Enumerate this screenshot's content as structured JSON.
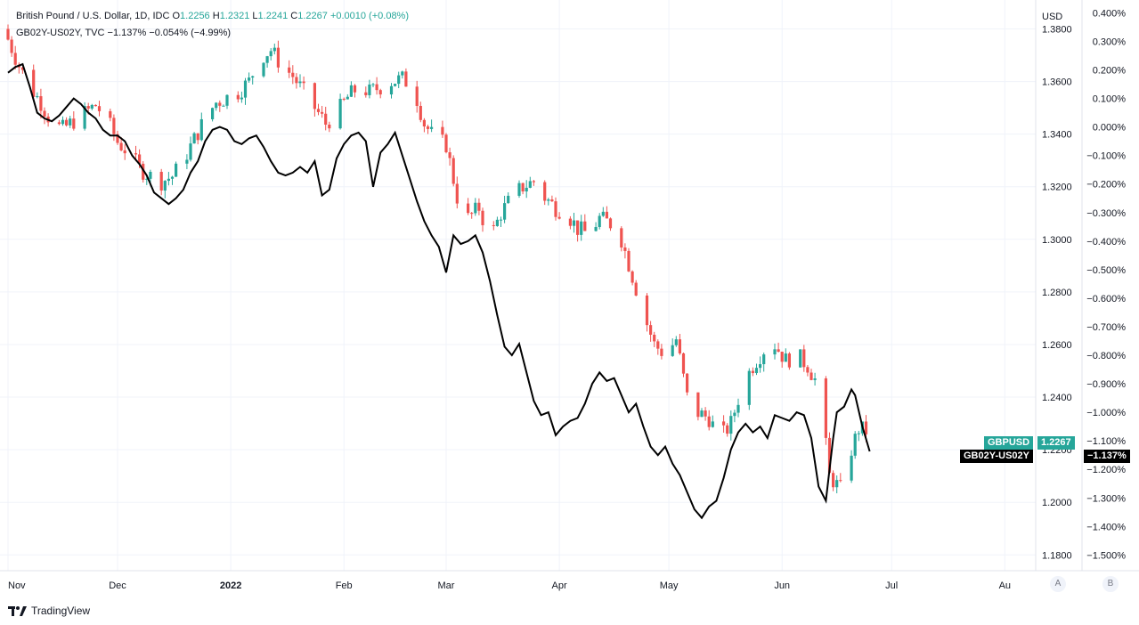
{
  "legend": {
    "line1": {
      "symbol": "British Pound / U.S. Dollar, 1D, IDC",
      "o_label": "O",
      "o": "1.2256",
      "h_label": "H",
      "h": "1.2321",
      "l_label": "L",
      "l": "1.2241",
      "c_label": "C",
      "c": "1.2267",
      "change": "+0.0010 (+0.08%)"
    },
    "line2": {
      "symbol": "GB02Y-US02Y, TVC",
      "value": "−1.137%",
      "change": "−0.054% (−4.99%)"
    }
  },
  "badges": {
    "gbpusd_name": "GBPUSD",
    "gbpusd_value": "1.2267",
    "spread_name": "GB02Y-US02Y",
    "spread_value": "−1.137%"
  },
  "footer": {
    "brand": "TradingView",
    "scale_a": "A",
    "scale_b": "B"
  },
  "colors": {
    "up": "#26a69a",
    "down": "#ef5350",
    "spread_line": "#000000",
    "grid": "#f0f3fa"
  },
  "chart_data": {
    "type": "candlestick+line",
    "left_axis": {
      "unit_label": "USD",
      "ticks": [
        "1.3800",
        "1.3600",
        "1.3400",
        "1.3200",
        "1.3000",
        "1.2800",
        "1.2600",
        "1.2400",
        "1.2200",
        "1.2000",
        "1.1800"
      ],
      "ylim": [
        1.174,
        1.391
      ]
    },
    "right_axis": {
      "ticks": [
        "0.400%",
        "0.300%",
        "0.200%",
        "0.100%",
        "0.000%",
        "−0.100%",
        "−0.200%",
        "−0.300%",
        "−0.400%",
        "−0.500%",
        "−0.600%",
        "−0.700%",
        "−0.800%",
        "−0.900%",
        "−1.000%",
        "−1.100%",
        "−1.200%",
        "−1.300%",
        "−1.400%",
        "−1.500%"
      ],
      "ylim": [
        -1.555,
        0.445
      ]
    },
    "x_ticks": [
      "Nov",
      "Dec",
      "2022",
      "Feb",
      "Mar",
      "Apr",
      "May",
      "Jun",
      "Jul",
      "Au"
    ],
    "x_tick_days": [
      0,
      30,
      61,
      92,
      120,
      151,
      181,
      212,
      242,
      273
    ],
    "series": [
      {
        "name": "GBPUSD",
        "style": "candles",
        "day_range": [
          0,
          236
        ],
        "close_anchors": [
          [
            0,
            1.376
          ],
          [
            3,
            1.366
          ],
          [
            6,
            1.358
          ],
          [
            9,
            1.352
          ],
          [
            12,
            1.344
          ],
          [
            15,
            1.342
          ],
          [
            18,
            1.345
          ],
          [
            21,
            1.348
          ],
          [
            24,
            1.351
          ],
          [
            27,
            1.346
          ],
          [
            30,
            1.337
          ],
          [
            33,
            1.333
          ],
          [
            36,
            1.327
          ],
          [
            39,
            1.324
          ],
          [
            42,
            1.322
          ],
          [
            45,
            1.324
          ],
          [
            48,
            1.33
          ],
          [
            51,
            1.338
          ],
          [
            54,
            1.346
          ],
          [
            57,
            1.352
          ],
          [
            60,
            1.354
          ],
          [
            63,
            1.356
          ],
          [
            66,
            1.36
          ],
          [
            69,
            1.369
          ],
          [
            72,
            1.372
          ],
          [
            75,
            1.366
          ],
          [
            78,
            1.362
          ],
          [
            81,
            1.356
          ],
          [
            84,
            1.35
          ],
          [
            87,
            1.344
          ],
          [
            90,
            1.348
          ],
          [
            93,
            1.354
          ],
          [
            96,
            1.358
          ],
          [
            99,
            1.356
          ],
          [
            102,
            1.358
          ],
          [
            105,
            1.36
          ],
          [
            108,
            1.361
          ],
          [
            111,
            1.358
          ],
          [
            114,
            1.344
          ],
          [
            117,
            1.338
          ],
          [
            120,
            1.336
          ],
          [
            123,
            1.316
          ],
          [
            126,
            1.308
          ],
          [
            129,
            1.312
          ],
          [
            132,
            1.3
          ],
          [
            135,
            1.31
          ],
          [
            138,
            1.316
          ],
          [
            141,
            1.32
          ],
          [
            144,
            1.322
          ],
          [
            147,
            1.316
          ],
          [
            150,
            1.312
          ],
          [
            153,
            1.31
          ],
          [
            156,
            1.304
          ],
          [
            159,
            1.302
          ],
          [
            162,
            1.308
          ],
          [
            165,
            1.306
          ],
          [
            168,
            1.3
          ],
          [
            171,
            1.286
          ],
          [
            174,
            1.272
          ],
          [
            177,
            1.26
          ],
          [
            180,
            1.256
          ],
          [
            183,
            1.262
          ],
          [
            186,
            1.24
          ],
          [
            189,
            1.234
          ],
          [
            192,
            1.232
          ],
          [
            195,
            1.224
          ],
          [
            198,
            1.23
          ],
          [
            201,
            1.244
          ],
          [
            204,
            1.252
          ],
          [
            207,
            1.258
          ],
          [
            210,
            1.26
          ],
          [
            213,
            1.254
          ],
          [
            216,
            1.256
          ],
          [
            219,
            1.252
          ],
          [
            222,
            1.244
          ],
          [
            225,
            1.21
          ],
          [
            228,
            1.205
          ],
          [
            231,
            1.22
          ],
          [
            233,
            1.228
          ],
          [
            236,
            1.2267
          ]
        ]
      },
      {
        "name": "GB02Y-US02Y",
        "style": "line",
        "day_range": [
          0,
          236
        ],
        "points": [
          [
            0,
            0.19
          ],
          [
            2,
            0.21
          ],
          [
            4,
            0.22
          ],
          [
            6,
            0.14
          ],
          [
            8,
            0.05
          ],
          [
            10,
            0.03
          ],
          [
            12,
            0.02
          ],
          [
            14,
            0.04
          ],
          [
            16,
            0.07
          ],
          [
            18,
            0.1
          ],
          [
            20,
            0.08
          ],
          [
            22,
            0.05
          ],
          [
            24,
            0.03
          ],
          [
            26,
            -0.01
          ],
          [
            28,
            -0.03
          ],
          [
            30,
            -0.03
          ],
          [
            32,
            -0.05
          ],
          [
            34,
            -0.1
          ],
          [
            36,
            -0.13
          ],
          [
            38,
            -0.17
          ],
          [
            40,
            -0.23
          ],
          [
            42,
            -0.25
          ],
          [
            44,
            -0.27
          ],
          [
            46,
            -0.25
          ],
          [
            48,
            -0.22
          ],
          [
            50,
            -0.16
          ],
          [
            52,
            -0.12
          ],
          [
            54,
            -0.05
          ],
          [
            56,
            -0.01
          ],
          [
            58,
            -0.0
          ],
          [
            60,
            -0.01
          ],
          [
            62,
            -0.05
          ],
          [
            64,
            -0.06
          ],
          [
            66,
            -0.04
          ],
          [
            68,
            -0.03
          ],
          [
            70,
            -0.07
          ],
          [
            72,
            -0.12
          ],
          [
            74,
            -0.16
          ],
          [
            76,
            -0.17
          ],
          [
            78,
            -0.16
          ],
          [
            80,
            -0.14
          ],
          [
            82,
            -0.16
          ],
          [
            84,
            -0.12
          ],
          [
            86,
            -0.24
          ],
          [
            88,
            -0.22
          ],
          [
            90,
            -0.11
          ],
          [
            92,
            -0.06
          ],
          [
            94,
            -0.03
          ],
          [
            96,
            -0.02
          ],
          [
            98,
            -0.05
          ],
          [
            100,
            -0.21
          ],
          [
            102,
            -0.09
          ],
          [
            104,
            -0.06
          ],
          [
            106,
            -0.02
          ],
          [
            108,
            -0.1
          ],
          [
            110,
            -0.18
          ],
          [
            112,
            -0.26
          ],
          [
            114,
            -0.33
          ],
          [
            116,
            -0.38
          ],
          [
            118,
            -0.42
          ],
          [
            120,
            -0.51
          ],
          [
            122,
            -0.38
          ],
          [
            124,
            -0.41
          ],
          [
            126,
            -0.4
          ],
          [
            128,
            -0.38
          ],
          [
            130,
            -0.44
          ],
          [
            132,
            -0.54
          ],
          [
            134,
            -0.66
          ],
          [
            136,
            -0.77
          ],
          [
            138,
            -0.8
          ],
          [
            140,
            -0.76
          ],
          [
            142,
            -0.86
          ],
          [
            144,
            -0.96
          ],
          [
            146,
            -1.01
          ],
          [
            148,
            -1.0
          ],
          [
            150,
            -1.08
          ],
          [
            152,
            -1.05
          ],
          [
            154,
            -1.03
          ],
          [
            156,
            -1.02
          ],
          [
            158,
            -0.97
          ],
          [
            160,
            -0.9
          ],
          [
            162,
            -0.86
          ],
          [
            164,
            -0.89
          ],
          [
            166,
            -0.88
          ],
          [
            168,
            -0.94
          ],
          [
            170,
            -1.0
          ],
          [
            172,
            -0.97
          ],
          [
            174,
            -1.05
          ],
          [
            176,
            -1.12
          ],
          [
            178,
            -1.15
          ],
          [
            180,
            -1.12
          ],
          [
            182,
            -1.18
          ],
          [
            184,
            -1.22
          ],
          [
            186,
            -1.28
          ],
          [
            188,
            -1.34
          ],
          [
            190,
            -1.37
          ],
          [
            192,
            -1.33
          ],
          [
            194,
            -1.31
          ],
          [
            196,
            -1.23
          ],
          [
            198,
            -1.13
          ],
          [
            200,
            -1.07
          ],
          [
            202,
            -1.04
          ],
          [
            204,
            -1.07
          ],
          [
            206,
            -1.05
          ],
          [
            208,
            -1.09
          ],
          [
            210,
            -1.01
          ],
          [
            212,
            -1.02
          ],
          [
            214,
            -1.03
          ],
          [
            216,
            -1.0
          ],
          [
            218,
            -1.01
          ],
          [
            220,
            -1.09
          ],
          [
            222,
            -1.26
          ],
          [
            224,
            -1.31
          ],
          [
            226,
            -1.09
          ],
          [
            227,
            -1.0
          ],
          [
            229,
            -0.98
          ],
          [
            231,
            -0.92
          ],
          [
            232,
            -0.94
          ],
          [
            234,
            -1.05
          ],
          [
            236,
            -1.137
          ]
        ]
      }
    ]
  }
}
